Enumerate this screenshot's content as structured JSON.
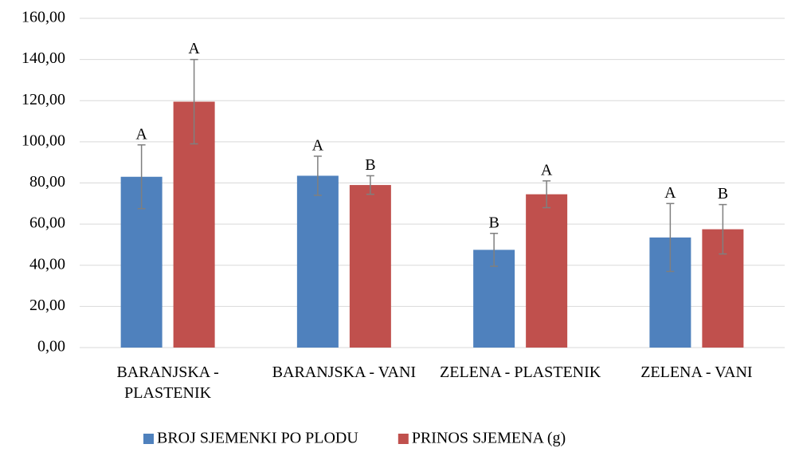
{
  "chart_data": {
    "type": "bar",
    "categories": [
      "BARANJSKA - PLASTENIK",
      "BARANJSKA - VANI",
      "ZELENA - PLASTENIK",
      "ZELENA - VANI"
    ],
    "series": [
      {
        "name": "BROJ SJEMENKI PO PLODU",
        "color": "#4f81bd",
        "values": [
          83,
          83.5,
          47.5,
          53.5
        ],
        "errors": [
          15.5,
          9.5,
          8,
          16.5
        ],
        "letters": [
          "A",
          "A",
          "B",
          "A"
        ]
      },
      {
        "name": "PRINOS SJEMENA (g)",
        "color": "#c0504d",
        "values": [
          119.5,
          79,
          74.5,
          57.5
        ],
        "errors": [
          20.5,
          4.5,
          6.5,
          12
        ],
        "letters": [
          "A",
          "B",
          "A",
          "B"
        ]
      }
    ],
    "ylim": [
      0,
      160
    ],
    "yticks": [
      {
        "value": 0,
        "label": "0,00"
      },
      {
        "value": 20,
        "label": "20,00"
      },
      {
        "value": 40,
        "label": "40,00"
      },
      {
        "value": 60,
        "label": "60,00"
      },
      {
        "value": 80,
        "label": "80,00"
      },
      {
        "value": 100,
        "label": "100,00"
      },
      {
        "value": 120,
        "label": "120,00"
      },
      {
        "value": 140,
        "label": "140,00"
      },
      {
        "value": 160,
        "label": "160,00"
      }
    ],
    "grid": true,
    "legend": "bottom"
  }
}
